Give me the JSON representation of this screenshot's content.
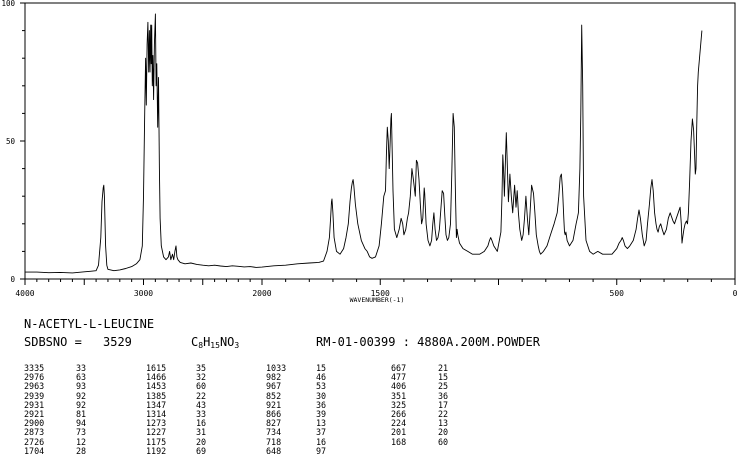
{
  "compound": {
    "name": "N-ACETYL-L-LEUCINE",
    "sdbs_label": "SDBSNO = ",
    "sdbs_number": "3529",
    "formula_parts": [
      "C",
      "8",
      "H",
      "15",
      "NO",
      "3"
    ],
    "measurement": "RM-01-00399 : 4880A.200M.POWDER"
  },
  "peak_table": [
    [
      [
        "3335",
        "33"
      ],
      [
        "2976",
        "63"
      ],
      [
        "2963",
        "93"
      ],
      [
        "2939",
        "92"
      ],
      [
        "2931",
        "92"
      ],
      [
        "2921",
        "81"
      ],
      [
        "2900",
        "94"
      ],
      [
        "2873",
        "73"
      ],
      [
        "2726",
        "12"
      ],
      [
        "1704",
        "28"
      ]
    ],
    [
      [
        "1615",
        "35"
      ],
      [
        "1466",
        "32"
      ],
      [
        "1453",
        "60"
      ],
      [
        "1385",
        "22"
      ],
      [
        "1347",
        "43"
      ],
      [
        "1314",
        "33"
      ],
      [
        "1273",
        "16"
      ],
      [
        "1227",
        "31"
      ],
      [
        "1175",
        "20"
      ],
      [
        "1192",
        "69"
      ]
    ],
    [
      [
        "1033",
        "15"
      ],
      [
        "982",
        "46"
      ],
      [
        "967",
        "53"
      ],
      [
        "852",
        "30"
      ],
      [
        "921",
        "36"
      ],
      [
        "866",
        "39"
      ],
      [
        "827",
        "13"
      ],
      [
        "734",
        "37"
      ],
      [
        "718",
        "16"
      ],
      [
        "648",
        "97"
      ]
    ],
    [
      [
        "667",
        "21"
      ],
      [
        "477",
        "15"
      ],
      [
        "406",
        "25"
      ],
      [
        "351",
        "36"
      ],
      [
        "325",
        "17"
      ],
      [
        "266",
        "22"
      ],
      [
        "224",
        "13"
      ],
      [
        "201",
        "20"
      ],
      [
        "168",
        "60"
      ]
    ]
  ],
  "chart_data": {
    "type": "line",
    "title": "",
    "xlabel": "WAVENUMBER(-1)",
    "ylabel": "",
    "xlim": [
      4000,
      0
    ],
    "ylim": [
      0,
      100
    ],
    "x_ticks": [
      "4000",
      "3000",
      "2000",
      "1500",
      "500",
      "0"
    ],
    "y_ticks": [
      "100",
      "50",
      "0"
    ],
    "grid": false,
    "series": [
      {
        "x": [
          4000,
          3900,
          3800,
          3700,
          3600,
          3500,
          3450,
          3400,
          3380,
          3360,
          3350,
          3340,
          3335,
          3330,
          3320,
          3310,
          3300,
          3250,
          3200,
          3150,
          3100,
          3060,
          3030,
          3010,
          3000,
          2990,
          2982,
          2976,
          2970,
          2963,
          2956,
          2950,
          2945,
          2939,
          2935,
          2931,
          2926,
          2921,
          2915,
          2908,
          2900,
          2894,
          2888,
          2880,
          2873,
          2866,
          2860,
          2850,
          2830,
          2810,
          2790,
          2780,
          2770,
          2755,
          2745,
          2735,
          2726,
          2718,
          2710,
          2690,
          2650,
          2600,
          2550,
          2500,
          2450,
          2400,
          2350,
          2300,
          2250,
          2200,
          2150,
          2100,
          2050,
          2000,
          1950,
          1900,
          1850,
          1800,
          1760,
          1740,
          1725,
          1715,
          1710,
          1706,
          1704,
          1700,
          1695,
          1685,
          1670,
          1655,
          1645,
          1635,
          1628,
          1622,
          1618,
          1615,
          1612,
          1605,
          1595,
          1580,
          1565,
          1555,
          1545,
          1535,
          1520,
          1505,
          1495,
          1485,
          1478,
          1474,
          1470,
          1466,
          1462,
          1458,
          1455,
          1453,
          1450,
          1446,
          1440,
          1430,
          1420,
          1412,
          1405,
          1400,
          1392,
          1385,
          1380,
          1373,
          1366,
          1360,
          1352,
          1347,
          1342,
          1336,
          1330,
          1325,
          1320,
          1316,
          1314,
          1312,
          1306,
          1298,
          1290,
          1283,
          1278,
          1273,
          1268,
          1262,
          1256,
          1250,
          1244,
          1238,
          1232,
          1227,
          1222,
          1216,
          1210,
          1203,
          1197,
          1192,
          1187,
          1182,
          1178,
          1175,
          1172,
          1165,
          1150,
          1130,
          1110,
          1080,
          1060,
          1045,
          1038,
          1033,
          1028,
          1020,
          1005,
          990,
          985,
          982,
          979,
          975,
          970,
          967,
          964,
          958,
          952,
          946,
          940,
          932,
          926,
          921,
          916,
          910,
          902,
          896,
          890,
          884,
          878,
          872,
          866,
          860,
          852,
          846,
          840,
          832,
          827,
          822,
          810,
          795,
          780,
          765,
          752,
          745,
          739,
          734,
          729,
          724,
          721,
          718,
          715,
          710,
          700,
          685,
          672,
          667,
          662,
          656,
          652,
          648,
          644,
          640,
          630,
          615,
          600,
          580,
          560,
          540,
          520,
          500,
          490,
          482,
          477,
          472,
          465,
          455,
          445,
          430,
          418,
          412,
          406,
          400,
          392,
          384,
          376,
          370,
          362,
          356,
          351,
          346,
          340,
          334,
          330,
          325,
          320,
          314,
          308,
          300,
          290,
          282,
          274,
          270,
          266,
          262,
          256,
          248,
          240,
          232,
          227,
          224,
          221,
          216,
          211,
          205,
          201,
          197,
          192,
          186,
          180,
          175,
          171,
          168,
          165,
          162,
          158,
          155,
          150,
          145,
          140
        ]
      }
    ]
  }
}
